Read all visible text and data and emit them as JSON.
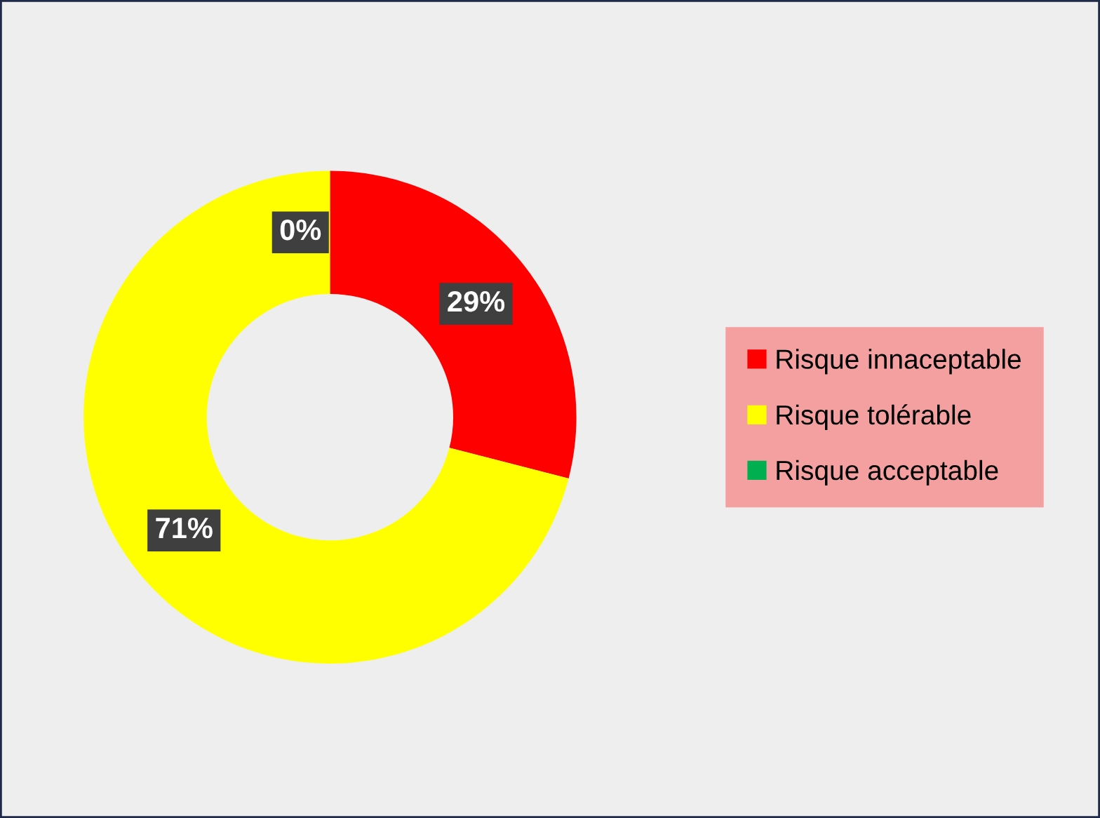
{
  "chart_data": {
    "type": "donut",
    "categories": [
      "Risque innaceptable",
      "Risque tolérable",
      "Risque acceptable"
    ],
    "values": [
      29,
      71,
      0
    ],
    "colors": [
      "#ff0000",
      "#ffff00",
      "#00b050"
    ],
    "value_labels": [
      "29%",
      "71%",
      "0%"
    ],
    "legend": "right"
  }
}
